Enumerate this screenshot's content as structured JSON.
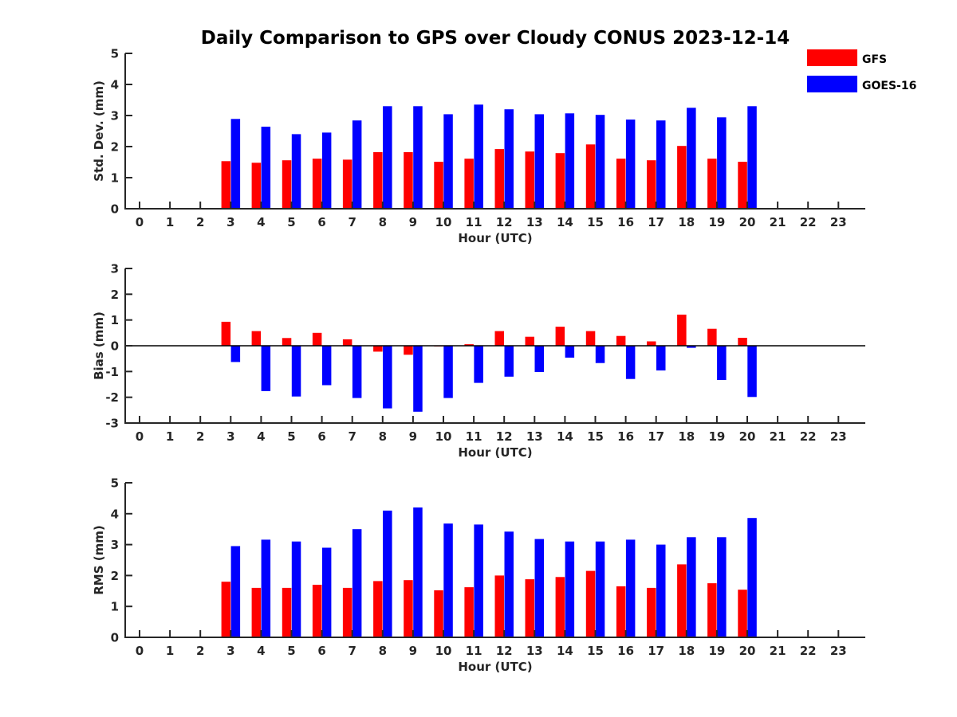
{
  "chart_data": {
    "type": "bar",
    "title": "Daily Comparison to GPS over Cloudy CONUS 2023-12-14",
    "categories": [
      0,
      1,
      2,
      3,
      4,
      5,
      6,
      7,
      8,
      9,
      10,
      11,
      12,
      13,
      14,
      15,
      16,
      17,
      18,
      19,
      20,
      21,
      22,
      23
    ],
    "legend": {
      "placement": "top-right",
      "entries": [
        {
          "name": "GFS",
          "color": "#ff0000"
        },
        {
          "name": "GOES-16",
          "color": "#0000ff"
        }
      ]
    },
    "panels": [
      {
        "id": "std",
        "ylabel": "Std. Dev. (mm)",
        "xlabel": "Hour (UTC)",
        "ylim": [
          0,
          5
        ],
        "yticks": [
          0,
          1,
          2,
          3,
          4,
          5
        ],
        "series": [
          {
            "name": "GFS",
            "color": "#ff0000",
            "values": [
              null,
              null,
              null,
              1.53,
              1.48,
              1.56,
              1.61,
              1.58,
              1.82,
              1.82,
              1.51,
              1.61,
              1.92,
              1.84,
              1.79,
              2.07,
              1.61,
              1.56,
              2.02,
              1.61,
              1.51,
              null,
              null,
              null
            ]
          },
          {
            "name": "GOES-16",
            "color": "#0000ff",
            "values": [
              null,
              null,
              null,
              2.89,
              2.64,
              2.4,
              2.45,
              2.84,
              3.3,
              3.3,
              3.04,
              3.35,
              3.2,
              3.04,
              3.07,
              3.02,
              2.87,
              2.84,
              3.25,
              2.94,
              3.3,
              null,
              null,
              null
            ]
          }
        ]
      },
      {
        "id": "bias",
        "ylabel": "Bias (mm)",
        "xlabel": "Hour (UTC)",
        "ylim": [
          -3,
          3
        ],
        "yticks": [
          -3,
          -2,
          -1,
          0,
          1,
          2,
          3
        ],
        "zeroline": true,
        "series": [
          {
            "name": "GFS",
            "color": "#ff0000",
            "values": [
              null,
              null,
              null,
              0.93,
              0.57,
              0.3,
              0.5,
              0.25,
              -0.23,
              -0.35,
              0.0,
              0.06,
              0.57,
              0.35,
              0.74,
              0.57,
              0.38,
              0.17,
              1.21,
              0.66,
              0.31,
              null,
              null,
              null
            ]
          },
          {
            "name": "GOES-16",
            "color": "#0000ff",
            "values": [
              null,
              null,
              null,
              -0.63,
              -1.76,
              -1.97,
              -1.53,
              -2.03,
              -2.43,
              -2.56,
              -2.03,
              -1.44,
              -1.2,
              -1.02,
              -0.46,
              -0.67,
              -1.29,
              -0.96,
              -0.08,
              -1.33,
              -1.99,
              null,
              null,
              null
            ]
          }
        ]
      },
      {
        "id": "rms",
        "ylabel": "RMS (mm)",
        "xlabel": "Hour (UTC)",
        "ylim": [
          0,
          5
        ],
        "yticks": [
          0,
          1,
          2,
          3,
          4,
          5
        ],
        "series": [
          {
            "name": "GFS",
            "color": "#ff0000",
            "values": [
              null,
              null,
              null,
              1.8,
              1.6,
              1.6,
              1.7,
              1.6,
              1.82,
              1.85,
              1.52,
              1.62,
              2.0,
              1.88,
              1.95,
              2.15,
              1.65,
              1.6,
              2.36,
              1.75,
              1.54,
              null,
              null,
              null
            ]
          },
          {
            "name": "GOES-16",
            "color": "#0000ff",
            "values": [
              null,
              null,
              null,
              2.95,
              3.16,
              3.1,
              2.9,
              3.5,
              4.1,
              4.2,
              3.68,
              3.65,
              3.42,
              3.18,
              3.1,
              3.1,
              3.16,
              3.0,
              3.24,
              3.24,
              3.86,
              null,
              null,
              null
            ]
          }
        ]
      }
    ]
  }
}
